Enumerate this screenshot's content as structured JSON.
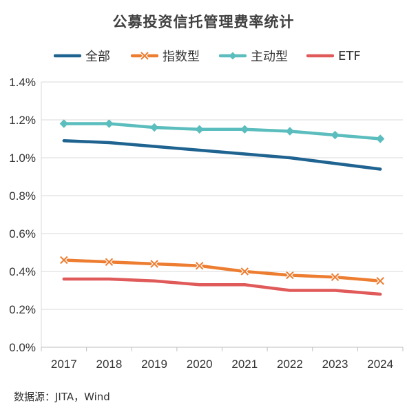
{
  "chart_data": {
    "type": "line",
    "title": "公募投资信托管理费率统计",
    "x": [
      "2017",
      "2018",
      "2019",
      "2020",
      "2021",
      "2022",
      "2023",
      "2024"
    ],
    "ylim": [
      0,
      1.4
    ],
    "yticks": [
      0,
      0.2,
      0.4,
      0.6,
      0.8,
      1.0,
      1.2,
      1.4
    ],
    "ytick_labels": [
      "0.0%",
      "0.2%",
      "0.4%",
      "0.6%",
      "0.8%",
      "1.0%",
      "1.2%",
      "1.4%"
    ],
    "xlabel": "",
    "ylabel": "",
    "grid": true,
    "legend_position": "top",
    "series": [
      {
        "name": "全部",
        "color": "#1F6391",
        "marker": "none",
        "values": [
          1.09,
          1.08,
          1.06,
          1.04,
          1.02,
          1.0,
          0.97,
          0.94
        ]
      },
      {
        "name": "指数型",
        "color": "#ED7D31",
        "marker": "x",
        "values": [
          0.46,
          0.45,
          0.44,
          0.43,
          0.4,
          0.38,
          0.37,
          0.35
        ]
      },
      {
        "name": "主动型",
        "color": "#5BBDBD",
        "marker": "diamond",
        "values": [
          1.18,
          1.18,
          1.16,
          1.15,
          1.15,
          1.14,
          1.12,
          1.1
        ]
      },
      {
        "name": "ETF",
        "color": "#E05A5A",
        "marker": "none",
        "values": [
          0.36,
          0.36,
          0.35,
          0.33,
          0.33,
          0.3,
          0.3,
          0.28
        ]
      }
    ]
  },
  "source_note": "数据源：JITA，Wind"
}
